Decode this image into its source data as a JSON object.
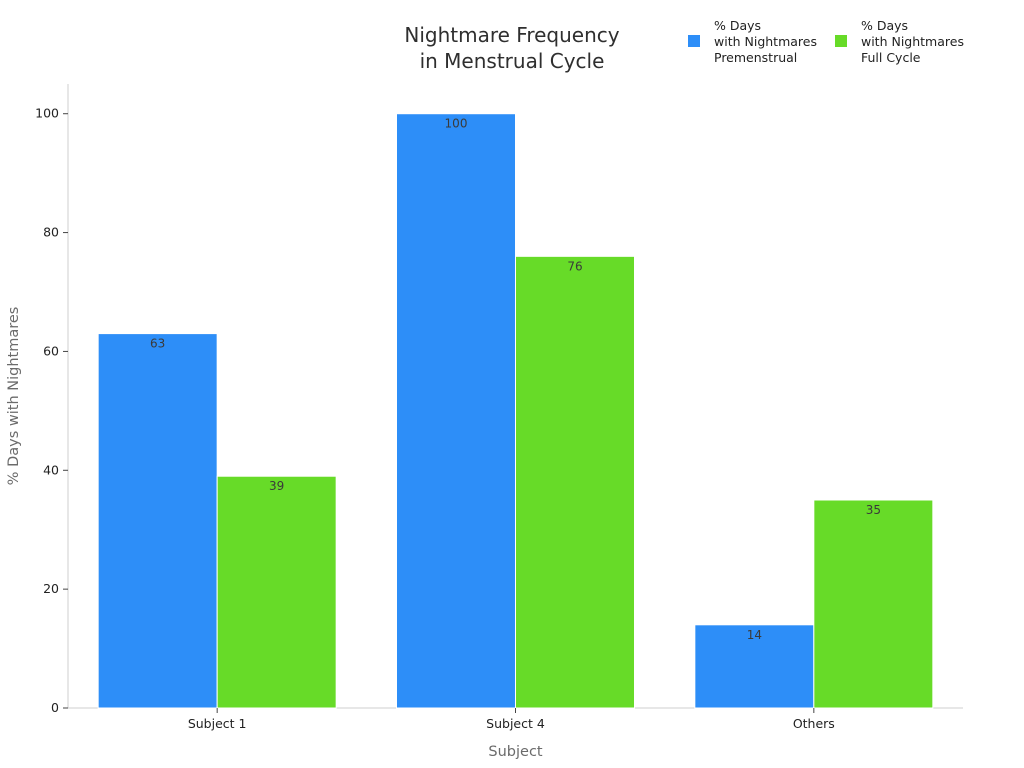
{
  "chart_data": {
    "type": "bar",
    "title_lines": [
      "Nightmare Frequency",
      "in Menstrual Cycle"
    ],
    "xlabel": "Subject",
    "ylabel": "% Days with Nightmares",
    "categories": [
      "Subject 1",
      "Subject 4",
      "Others"
    ],
    "series": [
      {
        "name": "% Days with Nightmares Premenstrual",
        "name_lines": [
          "% Days",
          "with Nightmares",
          "Premenstrual"
        ],
        "color": "#2d8ef8",
        "values": [
          63,
          100,
          14
        ]
      },
      {
        "name": "% Days with Nightmares Full Cycle",
        "name_lines": [
          "% Days",
          "with Nightmares",
          "Full Cycle"
        ],
        "color": "#67db28",
        "values": [
          39,
          76,
          35
        ]
      }
    ],
    "yticks": [
      0,
      20,
      40,
      60,
      80,
      100
    ],
    "ylim": [
      0,
      105
    ],
    "grid": false,
    "legend_position": "top-right"
  }
}
